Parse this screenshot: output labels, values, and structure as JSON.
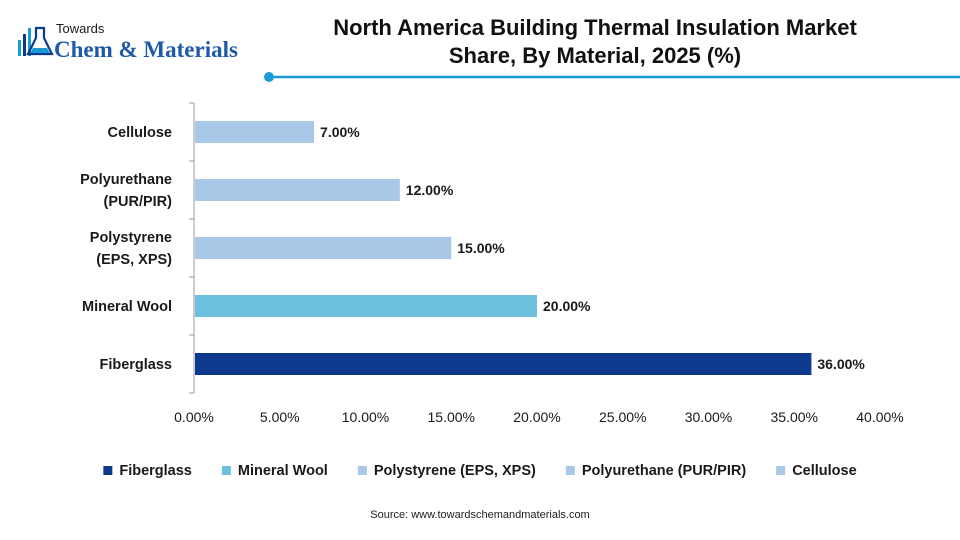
{
  "logo": {
    "top_text": "Towards",
    "main_text": "Chem & Materials",
    "icon": "flask-icon"
  },
  "title_line1": "North America Building Thermal Insulation Market",
  "title_line2": "Share, By Material, 2025 (%)",
  "source": "Source: www.towardschemandmaterials.com",
  "colors": {
    "accent": "#1a9bd7",
    "Fiberglass": "#0d3a8c",
    "Mineral Wool": "#6cbfdd",
    "Polystyrene (EPS, XPS)": "#a9c8e8",
    "Polyurethane (PUR/PIR)": "#a9c8e8",
    "Cellulose": "#a9c8e8"
  },
  "chart_data": {
    "type": "bar",
    "orientation": "horizontal",
    "title": "North America Building Thermal Insulation Market Share, By Material, 2025 (%)",
    "categories": [
      "Cellulose",
      "Polyurethane (PUR/PIR)",
      "Polystyrene (EPS, XPS)",
      "Mineral Wool",
      "Fiberglass"
    ],
    "category_lines": [
      [
        "Cellulose"
      ],
      [
        "Polyurethane",
        "(PUR/PIR)"
      ],
      [
        "Polystyrene",
        "(EPS, XPS)"
      ],
      [
        "Mineral Wool"
      ],
      [
        "Fiberglass"
      ]
    ],
    "values": [
      7,
      12,
      15,
      20,
      36
    ],
    "value_labels": [
      "7.00%",
      "12.00%",
      "15.00%",
      "20.00%",
      "36.00%"
    ],
    "xlim": [
      0,
      40
    ],
    "xticks": [
      "0.00%",
      "5.00%",
      "10.00%",
      "15.00%",
      "20.00%",
      "25.00%",
      "30.00%",
      "35.00%",
      "40.00%"
    ],
    "legend": [
      "Fiberglass",
      "Mineral Wool",
      "Polystyrene (EPS, XPS)",
      "Polyurethane (PUR/PIR)",
      "Cellulose"
    ],
    "legend_position": "bottom",
    "grid": false
  }
}
